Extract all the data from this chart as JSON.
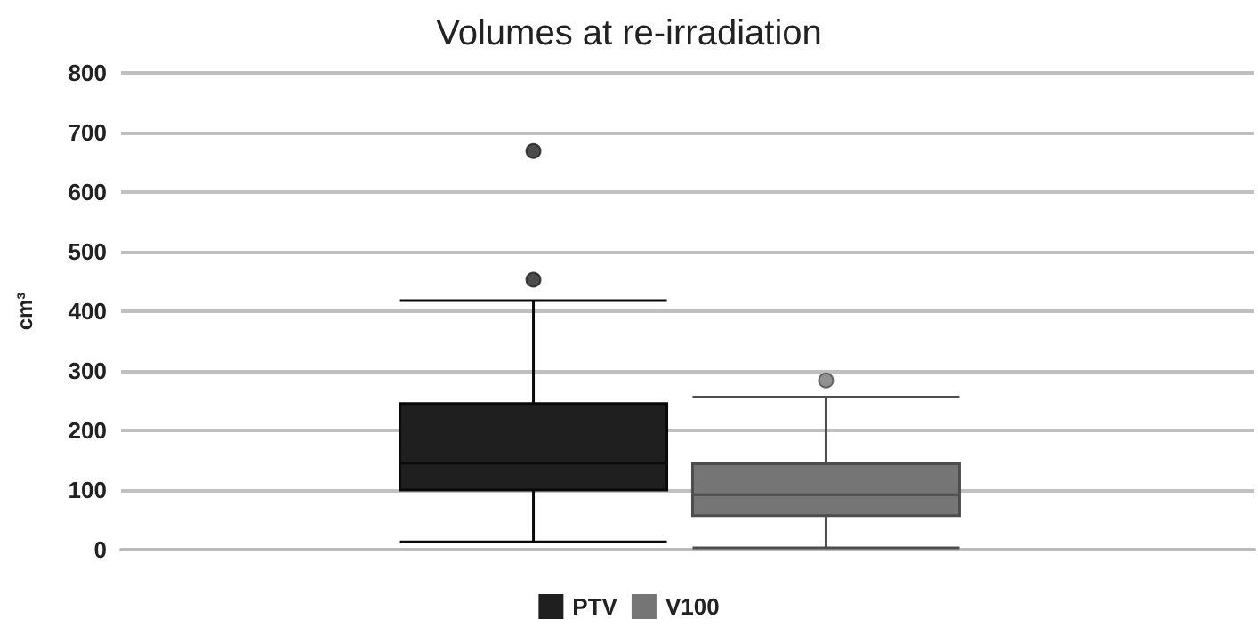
{
  "chart_data": {
    "type": "box",
    "title": "Volumes at re-irradiation",
    "ylabel": "cm³",
    "categories": [
      null
    ],
    "series": [
      {
        "name": "PTV",
        "color": "#1f1f1f",
        "boxes": [
          {
            "low": 13,
            "q1": 100,
            "median": 145,
            "q3": 245,
            "high": 418,
            "outliers": [
              453,
              669
            ]
          }
        ]
      },
      {
        "name": "V100",
        "color": "#757575",
        "boxes": [
          {
            "low": 3,
            "q1": 57,
            "median": 92,
            "q3": 144,
            "high": 256,
            "outliers": [
              284
            ]
          }
        ]
      }
    ],
    "ylim": [
      0,
      800
    ],
    "yticks": [
      0,
      100,
      200,
      300,
      400,
      500,
      600,
      700,
      800
    ],
    "grid": "y",
    "legend": "bottom"
  }
}
